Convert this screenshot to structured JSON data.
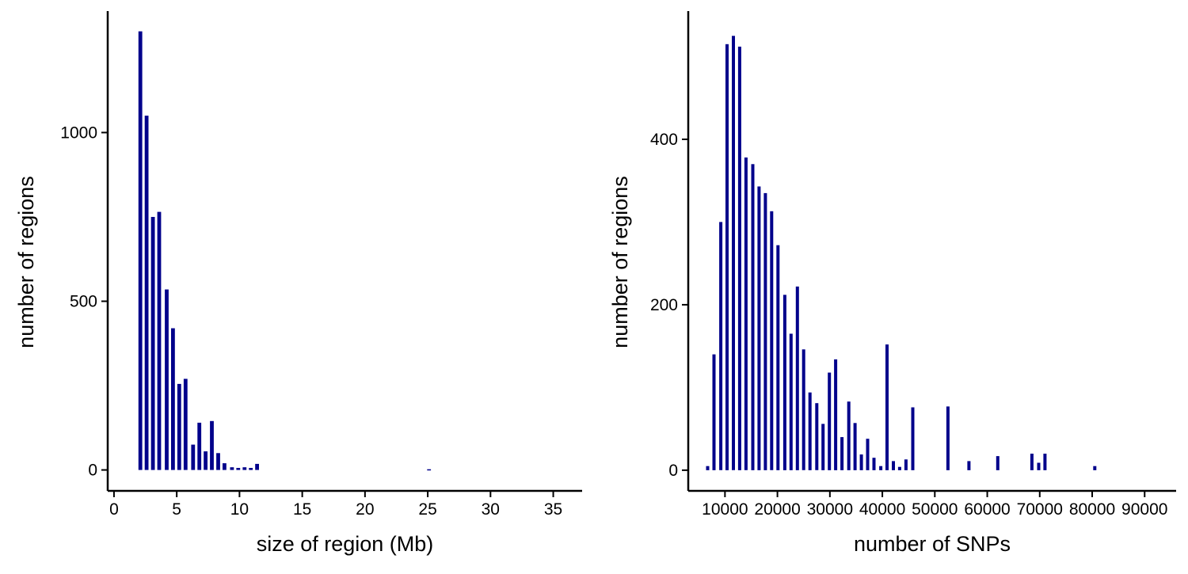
{
  "chart_data": [
    {
      "type": "bar",
      "xlabel": "size of region (Mb)",
      "ylabel": "number of regions",
      "bar_color": "#00008B",
      "xlim": [
        -0.5,
        37.3
      ],
      "ylim": [
        -62,
        1360
      ],
      "x_ticks": [
        0,
        5,
        10,
        15,
        20,
        25,
        30,
        35
      ],
      "x_tick_labels": [
        "0",
        "5",
        "10",
        "15",
        "20",
        "25",
        "30",
        "35"
      ],
      "y_ticks": [
        0,
        500,
        1000
      ],
      "y_tick_labels": [
        "0",
        "500",
        "1000"
      ],
      "bar_width": 0.3,
      "x": [
        2.1,
        2.6,
        3.1,
        3.6,
        4.2,
        4.7,
        5.2,
        5.7,
        6.3,
        6.8,
        7.3,
        7.8,
        8.3,
        8.8,
        9.4,
        9.9,
        10.4,
        10.9,
        11.4,
        25.1
      ],
      "values": [
        1300,
        1050,
        750,
        765,
        535,
        420,
        255,
        270,
        75,
        140,
        55,
        145,
        50,
        20,
        8,
        6,
        8,
        6,
        18,
        2
      ]
    },
    {
      "type": "bar",
      "xlabel": "number of SNPs",
      "ylabel": "number of regions",
      "bar_color": "#00008B",
      "xlim": [
        3000,
        96000
      ],
      "ylim": [
        -25,
        555
      ],
      "x_ticks": [
        10000,
        20000,
        30000,
        40000,
        50000,
        60000,
        70000,
        80000,
        90000
      ],
      "x_tick_labels": [
        "10000",
        "20000",
        "30000",
        "40000",
        "50000",
        "60000",
        "70000",
        "80000",
        "90000"
      ],
      "y_ticks": [
        0,
        200,
        400
      ],
      "y_tick_labels": [
        "0",
        "200",
        "400"
      ],
      "bar_width": 600,
      "x": [
        6700,
        7900,
        9200,
        10400,
        11600,
        12800,
        14000,
        15300,
        16500,
        17700,
        18900,
        20100,
        21400,
        22600,
        23800,
        25000,
        26200,
        27500,
        28700,
        29900,
        31100,
        32300,
        33600,
        34800,
        36000,
        37200,
        38400,
        39700,
        40900,
        42100,
        43300,
        44500,
        45800,
        47000,
        48200,
        52500,
        56500,
        62000,
        68500,
        69800,
        71000,
        80500
      ],
      "values": [
        5,
        140,
        300,
        515,
        525,
        512,
        378,
        370,
        343,
        335,
        313,
        272,
        212,
        165,
        222,
        146,
        94,
        81,
        56,
        118,
        134,
        40,
        83,
        57,
        19,
        38,
        15,
        5,
        152,
        11,
        4,
        13,
        76,
        0,
        0,
        77,
        11,
        17,
        20,
        9,
        20,
        5
      ]
    }
  ]
}
